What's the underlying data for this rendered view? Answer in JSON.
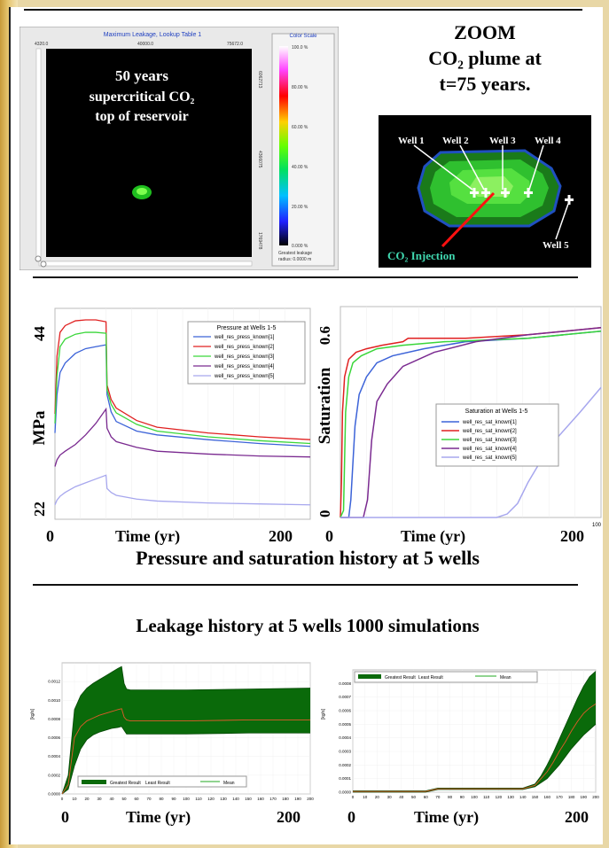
{
  "top_header_fragment": "",
  "map_panel": {
    "title": "Maximum Leakage, Lookup Table 1",
    "x_ticks": [
      "4320.0",
      "40000.0",
      "75672.0"
    ],
    "y_ticks": [
      "6062713",
      "4366075",
      "1769478"
    ],
    "overlay": [
      "50 years",
      "supercritical CO₂",
      "top of reservoir"
    ],
    "color_scale": {
      "title": "Color Scale",
      "ticks": [
        "100.0 %",
        "80.00 %",
        "60.00 %",
        "40.00 %",
        "20.00 %",
        "0.000 %"
      ],
      "footer": [
        "Greatest leakage",
        "radius: 0.0000 m"
      ]
    }
  },
  "zoom": {
    "title_lines": [
      "ZOOM",
      "CO₂ plume at",
      "t=75 years."
    ],
    "wells": [
      "Well 1",
      "Well 2",
      "Well 3",
      "Well 4",
      "Well 5"
    ],
    "injection_label": "CO₂ Injection"
  },
  "pressure_chart": {
    "legend_title": "Pressure at Wells 1-5",
    "ylabel": "MPa",
    "y_min_label": "22",
    "y_max_label": "44",
    "x_min_label": "0",
    "x_max_label": "200",
    "xlabel": "Time (yr)"
  },
  "saturation_chart": {
    "legend_title": "Saturation at Wells 1-5",
    "ylabel": "Saturation",
    "y_min_label": "0",
    "y_max_label": "0.6",
    "x_min_label": "0",
    "x_max_label": "200",
    "x_right_small": "100",
    "xlabel": "Time (yr)"
  },
  "history_caption": "Pressure and saturation  history  at 5 wells",
  "leakage_caption": "Leakage history  at 5 wells 1000 simulations",
  "leak_chart_1": {
    "ylabel": "[kg/s]",
    "legend": [
      "Greatest Result",
      "Least Result",
      "Mean"
    ],
    "y_ticks": [
      "0.0000",
      "0.0002",
      "0.0004",
      "0.0006",
      "0.0008",
      "0.0010",
      "0.0012"
    ],
    "x_ticks": [
      "0",
      "10",
      "20",
      "30",
      "40",
      "50",
      "60",
      "70",
      "80",
      "90",
      "100",
      "110",
      "120",
      "130",
      "140",
      "150",
      "160",
      "170",
      "180",
      "190",
      "200"
    ],
    "x_min_label": "0",
    "x_max_label": "200",
    "xlabel": "Time (yr)"
  },
  "leak_chart_2": {
    "ylabel": "[kg/s]",
    "legend": [
      "Greatest Result",
      "Least Result",
      "Mean"
    ],
    "y_ticks": [
      "0.0000",
      "0.0001",
      "0.0002",
      "0.0003",
      "0.0004",
      "0.0005",
      "0.0006",
      "0.0007",
      "0.0008"
    ],
    "x_ticks": [
      "0",
      "10",
      "20",
      "30",
      "40",
      "50",
      "60",
      "70",
      "80",
      "90",
      "100",
      "110",
      "120",
      "130",
      "140",
      "150",
      "160",
      "170",
      "180",
      "190",
      "200"
    ],
    "x_min_label": "0",
    "x_max_label": "200",
    "xlabel": "Time (yr)"
  },
  "chart_data": [
    {
      "type": "line",
      "legend_title": "Pressure at Wells 1-5",
      "ylabel": "MPa",
      "xlabel": "Time (yr)",
      "xlim": [
        0,
        250
      ],
      "ylim": [
        22,
        44
      ],
      "x": [
        0,
        2,
        5,
        10,
        20,
        30,
        40,
        50,
        51,
        55,
        60,
        80,
        100,
        150,
        200,
        250
      ],
      "series": [
        {
          "name": "well_res_press_known[1]",
          "color": "#3c63d8",
          "values": [
            31,
            35,
            37.3,
            38.3,
            39.3,
            39.8,
            40,
            40.2,
            35,
            33.2,
            32.2,
            31.2,
            30.8,
            30.3,
            29.9,
            29.6
          ]
        },
        {
          "name": "well_res_press_known[2]",
          "color": "#e02020",
          "values": [
            33,
            39,
            41.5,
            42.2,
            42.7,
            42.8,
            42.8,
            42.6,
            36,
            34.5,
            33.6,
            32.3,
            31.6,
            31,
            30.6,
            30.3
          ]
        },
        {
          "name": "well_res_press_known[3]",
          "color": "#3ad63a",
          "values": [
            32,
            37,
            40,
            40.8,
            41.3,
            41.5,
            41.5,
            41.4,
            35.5,
            34,
            33.1,
            31.9,
            31.2,
            30.6,
            30.2,
            29.9
          ]
        },
        {
          "name": "well_res_press_known[4]",
          "color": "#7a2a90",
          "values": [
            27.5,
            28.2,
            28.7,
            29.1,
            29.8,
            30.8,
            32,
            33.5,
            31.5,
            30.6,
            30.1,
            29.5,
            29.1,
            28.8,
            28.6,
            28.5
          ]
        },
        {
          "name": "well_res_press_known[5]",
          "color": "#a7a7ee",
          "values": [
            23.5,
            24,
            24.4,
            24.8,
            25.4,
            25.8,
            26.2,
            26.6,
            25.2,
            24.8,
            24.5,
            24.1,
            23.9,
            23.7,
            23.6,
            23.5
          ]
        }
      ]
    },
    {
      "type": "line",
      "legend_title": "Saturation at Wells 1-5",
      "ylabel": "Saturation",
      "xlabel": "Time (yr)",
      "xlim": [
        0,
        250
      ],
      "ylim": [
        0,
        0.6
      ],
      "series": [
        {
          "name": "well_res_sat_known[1]",
          "color": "#3c63d8",
          "x": [
            0,
            8,
            10,
            14,
            18,
            25,
            35,
            50,
            80,
            120,
            180,
            250
          ],
          "values": [
            0,
            0,
            0.05,
            0.26,
            0.35,
            0.4,
            0.44,
            0.46,
            0.48,
            0.5,
            0.51,
            0.53
          ]
        },
        {
          "name": "well_res_sat_known[2]",
          "color": "#e02020",
          "x": [
            0,
            1,
            2,
            4,
            8,
            15,
            25,
            40,
            60,
            65,
            80,
            120,
            180,
            250
          ],
          "values": [
            0,
            0.1,
            0.3,
            0.4,
            0.45,
            0.47,
            0.48,
            0.49,
            0.5,
            0.51,
            0.51,
            0.51,
            0.52,
            0.54
          ]
        },
        {
          "name": "well_res_sat_known[3]",
          "color": "#3ad63a",
          "x": [
            0,
            3,
            5,
            8,
            12,
            20,
            35,
            60,
            100,
            180,
            250
          ],
          "values": [
            0,
            0.02,
            0.3,
            0.4,
            0.44,
            0.46,
            0.48,
            0.49,
            0.5,
            0.51,
            0.53
          ]
        },
        {
          "name": "well_res_sat_known[4]",
          "color": "#7a2a90",
          "x": [
            0,
            22,
            26,
            30,
            35,
            45,
            60,
            90,
            130,
            180,
            250
          ],
          "values": [
            0,
            0,
            0.05,
            0.22,
            0.33,
            0.38,
            0.43,
            0.47,
            0.5,
            0.52,
            0.54
          ]
        },
        {
          "name": "well_res_sat_known[5]",
          "color": "#a7a7ee",
          "x": [
            0,
            150,
            160,
            170,
            180,
            200,
            230,
            250
          ],
          "values": [
            0,
            0,
            0.01,
            0.04,
            0.1,
            0.2,
            0.3,
            0.37
          ]
        }
      ]
    },
    {
      "type": "area",
      "ylabel": "[kg/s]",
      "xlabel": "Time (yr)",
      "xlim": [
        0,
        200
      ],
      "ylim": [
        0,
        0.0014
      ],
      "legend": [
        "Greatest Result",
        "Least Result",
        "Mean"
      ],
      "x": [
        0,
        5,
        10,
        15,
        20,
        25,
        30,
        35,
        40,
        45,
        48,
        50,
        52,
        55,
        60,
        80,
        100,
        150,
        200
      ],
      "upper": [
        0,
        0.0002,
        0.0009,
        0.00105,
        0.00113,
        0.00118,
        0.00122,
        0.00126,
        0.0013,
        0.00134,
        0.00136,
        0.00118,
        0.00112,
        0.00111,
        0.00111,
        0.00111,
        0.00111,
        0.00112,
        0.00113
      ],
      "lower": [
        0,
        5e-05,
        0.0003,
        0.00048,
        0.00058,
        0.00063,
        0.00066,
        0.00068,
        0.0007,
        0.00071,
        0.00072,
        0.00068,
        0.00064,
        0.00064,
        0.00064,
        0.00064,
        0.00064,
        0.00065,
        0.00065
      ],
      "mean": [
        0,
        0.0001,
        0.0006,
        0.00072,
        0.00078,
        0.00081,
        0.00084,
        0.00086,
        0.00088,
        0.0009,
        0.00091,
        0.00082,
        0.00079,
        0.00078,
        0.00078,
        0.00078,
        0.00078,
        0.00079,
        0.00079
      ]
    },
    {
      "type": "area",
      "ylabel": "[kg/s]",
      "xlabel": "Time (yr)",
      "xlim": [
        0,
        200
      ],
      "ylim": [
        0,
        0.0009
      ],
      "legend": [
        "Greatest Result",
        "Least Result",
        "Mean"
      ],
      "x": [
        0,
        60,
        70,
        140,
        150,
        155,
        160,
        165,
        170,
        175,
        180,
        185,
        190,
        195,
        200
      ],
      "upper": [
        1e-05,
        1e-05,
        3e-05,
        3e-05,
        6e-05,
        0.00012,
        0.0002,
        0.00029,
        0.00039,
        0.00049,
        0.00059,
        0.00069,
        0.00078,
        0.00085,
        0.00089
      ],
      "lower": [
        0,
        0,
        2e-05,
        2e-05,
        4e-05,
        7e-05,
        0.0001,
        0.00015,
        0.0002,
        0.00026,
        0.00032,
        0.00037,
        0.00042,
        0.00046,
        0.0005
      ],
      "mean": [
        5e-06,
        5e-06,
        2.5e-05,
        2.5e-05,
        5e-05,
        0.0001,
        0.00015,
        0.00022,
        0.0003,
        0.00037,
        0.00045,
        0.00052,
        0.00058,
        0.00062,
        0.00065
      ]
    }
  ]
}
